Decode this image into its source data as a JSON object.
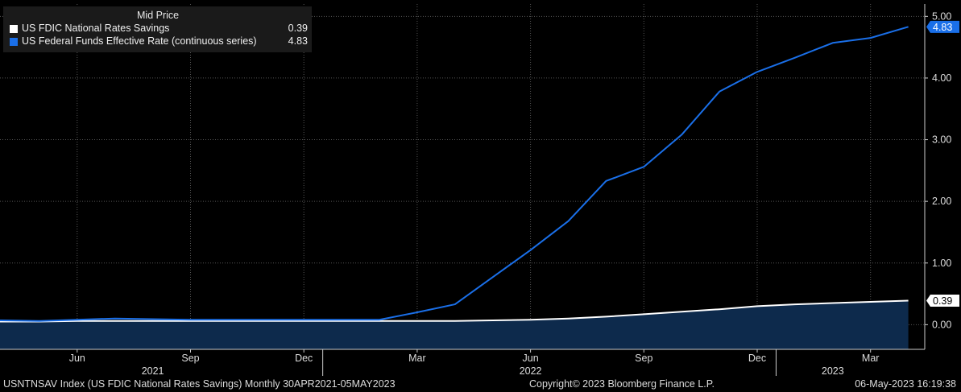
{
  "legend": {
    "header": "Mid Price",
    "items": [
      {
        "name": "US FDIC National Rates Savings",
        "value": "0.39",
        "color": "#ffffff"
      },
      {
        "name": "US Federal Funds Effective Rate (continuous series)",
        "value": "4.83",
        "color": "#1a6fe8"
      }
    ]
  },
  "chart_data": {
    "type": "line",
    "x": [
      "2021-04",
      "2021-05",
      "2021-06",
      "2021-07",
      "2021-08",
      "2021-09",
      "2021-10",
      "2021-11",
      "2021-12",
      "2022-01",
      "2022-02",
      "2022-03",
      "2022-04",
      "2022-05",
      "2022-06",
      "2022-07",
      "2022-08",
      "2022-09",
      "2022-10",
      "2022-11",
      "2022-12",
      "2023-01",
      "2023-02",
      "2023-03",
      "2023-04"
    ],
    "series": [
      {
        "name": "US FDIC National Rates Savings",
        "color": "#ffffff",
        "values": [
          0.05,
          0.05,
          0.06,
          0.06,
          0.06,
          0.06,
          0.06,
          0.06,
          0.06,
          0.06,
          0.06,
          0.06,
          0.06,
          0.07,
          0.08,
          0.1,
          0.13,
          0.17,
          0.21,
          0.25,
          0.3,
          0.33,
          0.35,
          0.37,
          0.39
        ],
        "last_label": "0.39"
      },
      {
        "name": "US Federal Funds Effective Rate (continuous series)",
        "color": "#1a6fe8",
        "values": [
          0.07,
          0.06,
          0.08,
          0.1,
          0.09,
          0.08,
          0.08,
          0.08,
          0.08,
          0.08,
          0.08,
          0.2,
          0.33,
          0.77,
          1.21,
          1.68,
          2.33,
          2.56,
          3.08,
          3.78,
          4.1,
          4.33,
          4.57,
          4.65,
          4.83
        ],
        "last_label": "4.83"
      }
    ],
    "ylim": [
      -0.4,
      5.2
    ],
    "y_ticks": [
      0,
      1,
      2,
      3,
      4,
      5
    ],
    "y_tick_labels": [
      "0.00",
      "1.00",
      "2.00",
      "3.00",
      "4.00",
      "5.00"
    ],
    "x_month_ticks": [
      {
        "label": "Jun",
        "x": "2021-06"
      },
      {
        "label": "Sep",
        "x": "2021-09"
      },
      {
        "label": "Dec",
        "x": "2021-12"
      },
      {
        "label": "Mar",
        "x": "2022-03"
      },
      {
        "label": "Jun",
        "x": "2022-06"
      },
      {
        "label": "Sep",
        "x": "2022-09"
      },
      {
        "label": "Dec",
        "x": "2022-12"
      },
      {
        "label": "Mar",
        "x": "2023-03"
      }
    ],
    "x_year_labels": [
      {
        "label": "2021",
        "x": "2021-08"
      },
      {
        "label": "2022",
        "x": "2022-06"
      },
      {
        "label": "2023",
        "x": "2023-02"
      }
    ],
    "x_year_boundaries": [
      "2022-01",
      "2023-01"
    ],
    "grid": true,
    "legend_position": "top-left"
  },
  "footer": {
    "left": "USNTNSAV Index (US FDIC National Rates Savings)  Monthly 30APR2021-05MAY2023",
    "center": "Copyright© 2023 Bloomberg Finance L.P.",
    "right": "06-May-2023 16:19:38"
  },
  "colors": {
    "background": "#000000",
    "area_fill": "#0d2a4c",
    "grid": "#555555"
  }
}
